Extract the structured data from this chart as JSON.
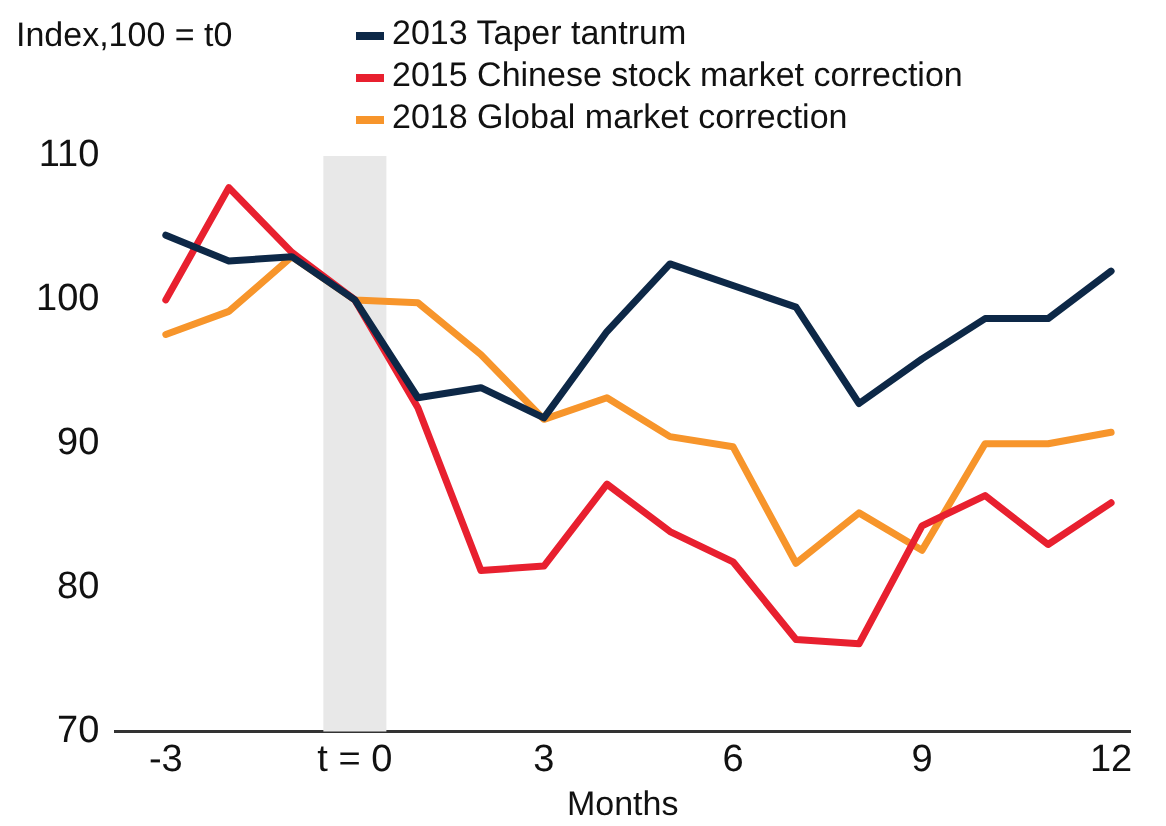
{
  "chart_data": {
    "type": "line",
    "ylabel": "Index,100 = t0",
    "xlabel": "Months",
    "x": [
      -3,
      -2,
      -1,
      0,
      1,
      2,
      3,
      4,
      5,
      6,
      7,
      8,
      9,
      10,
      11,
      12
    ],
    "series": [
      {
        "name": "2013 Taper tantrum",
        "color": "#0d2847",
        "values": [
          104.5,
          102.7,
          103,
          100,
          93.2,
          93.9,
          91.8,
          97.8,
          102.5,
          101,
          99.5,
          92.8,
          95.9,
          98.7,
          98.7,
          102
        ]
      },
      {
        "name": "2015 Chinese stock market correction",
        "color": "#e8202f",
        "values": [
          100,
          107.8,
          103.3,
          100,
          92.5,
          81.2,
          81.5,
          87.2,
          83.9,
          81.8,
          76.4,
          76.1,
          84.3,
          86.4,
          83,
          85.9
        ]
      },
      {
        "name": "2018 Global market correction",
        "color": "#f7952b",
        "values": [
          97.6,
          99.2,
          103,
          100,
          99.8,
          96.2,
          91.7,
          93.2,
          90.5,
          89.8,
          81.7,
          85.2,
          82.6,
          90,
          90,
          90.8
        ]
      }
    ],
    "xlim": [
      -3.8,
      12.3
    ],
    "xticks": [
      -3,
      {
        "value": 0,
        "label": "t = 0"
      },
      3,
      6,
      9,
      12
    ],
    "ylim": [
      70,
      110
    ],
    "yticks": [
      70,
      80,
      90,
      100,
      110
    ],
    "bands": [
      {
        "axis": "x",
        "from": -0.5,
        "to": 0.5,
        "color": "#e8e8e8"
      }
    ],
    "grid": false,
    "legend": "top",
    "marker": "none",
    "line_style": "solid"
  }
}
